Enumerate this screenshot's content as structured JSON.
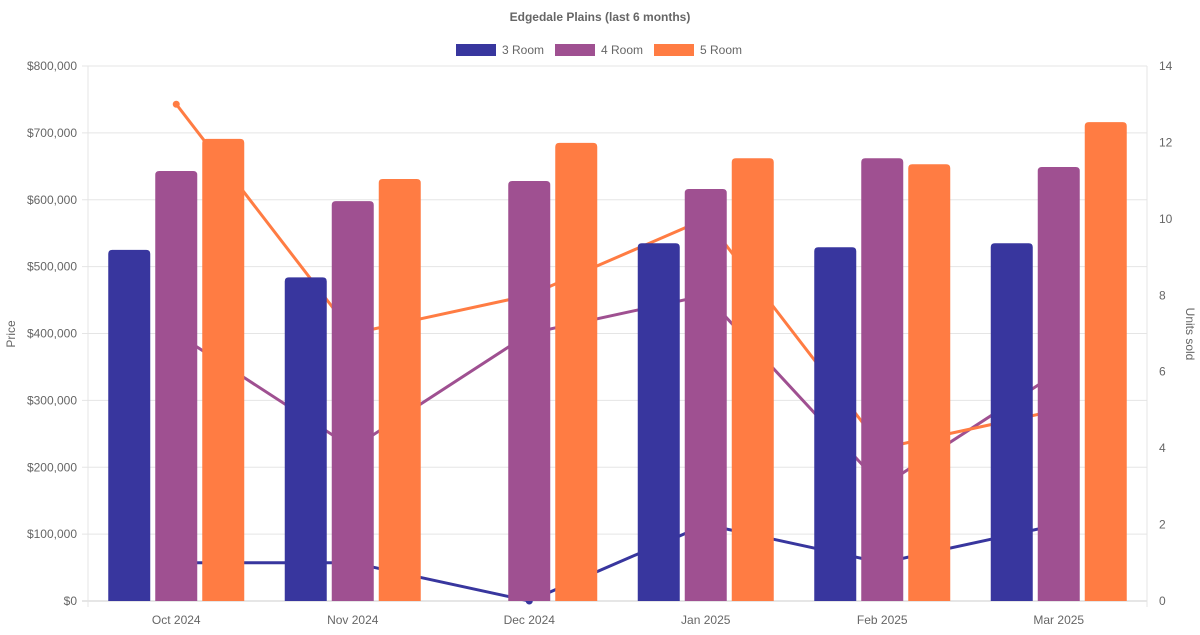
{
  "chart_data": {
    "type": "bar",
    "title": "Edgedale  Plains (last 6 months)",
    "categories": [
      "Oct 2024",
      "Nov 2024",
      "Dec 2024",
      "Jan 2025",
      "Feb 2025",
      "Mar 2025"
    ],
    "ylabel": "Price",
    "y2label": "Units sold",
    "ylim": [
      0,
      800000
    ],
    "y2lim": [
      0,
      14
    ],
    "yticks": [
      "$0",
      "$100,000",
      "$200,000",
      "$300,000",
      "$400,000",
      "$500,000",
      "$600,000",
      "$700,000",
      "$800,000"
    ],
    "y2ticks": [
      "0",
      "2",
      "4",
      "6",
      "8",
      "10",
      "12",
      "14"
    ],
    "legend_position": "top",
    "grid": true,
    "series": [
      {
        "name": "3 Room",
        "color": "#38369e",
        "type": "bar",
        "axis": "price",
        "values": [
          525000,
          484000,
          null,
          535000,
          529000,
          535000
        ]
      },
      {
        "name": "4 Room",
        "color": "#9f5091",
        "type": "bar",
        "axis": "price",
        "values": [
          643000,
          598000,
          628000,
          616000,
          662000,
          649000
        ]
      },
      {
        "name": "5 Room",
        "color": "#ff7c43",
        "type": "bar",
        "axis": "price",
        "values": [
          691000,
          631000,
          685000,
          662000,
          653000,
          716000
        ]
      },
      {
        "name": "3 Room",
        "color": "#38369e",
        "type": "line",
        "axis": "units",
        "values": [
          1,
          1,
          0,
          2,
          1,
          2
        ]
      },
      {
        "name": "4 Room",
        "color": "#9f5091",
        "type": "line",
        "axis": "units",
        "values": [
          7,
          4,
          7,
          8,
          3,
          6
        ]
      },
      {
        "name": "5 Room",
        "color": "#ff7c43",
        "type": "line",
        "axis": "units",
        "values": [
          13,
          7,
          8,
          10,
          4,
          5
        ]
      }
    ]
  }
}
